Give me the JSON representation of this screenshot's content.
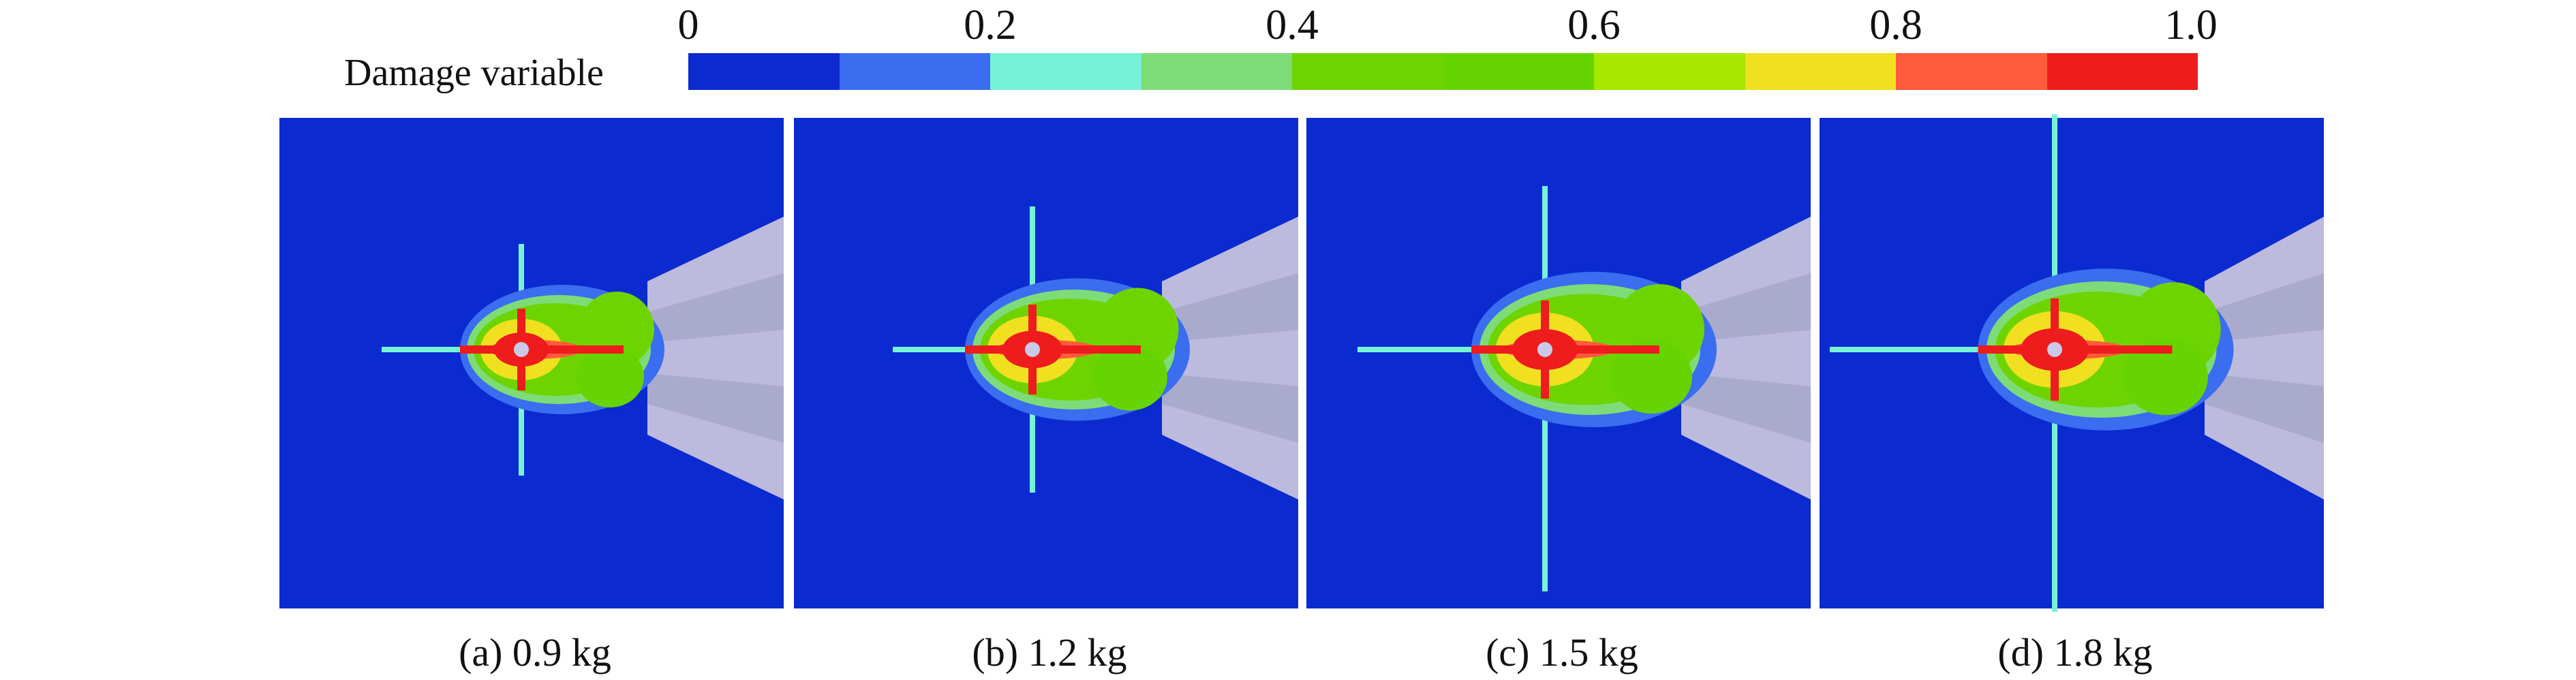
{
  "legend": {
    "title": "Damage variable",
    "ticks": [
      "0",
      "0.2",
      "0.4",
      "0.6",
      "0.8",
      "1.0"
    ],
    "colors": [
      "#0b2ad0",
      "#3a6df0",
      "#76f2d6",
      "#7ddc78",
      "#6ed400",
      "#66d400",
      "#a6e800",
      "#f0e020",
      "#ff5a3c",
      "#ee1c1c"
    ]
  },
  "panels": [
    {
      "caption": "(a) 0.9 kg"
    },
    {
      "caption": "(b) 1.2 kg"
    },
    {
      "caption": "(c) 1.5 kg"
    },
    {
      "caption": "(d) 1.8 kg"
    }
  ]
}
